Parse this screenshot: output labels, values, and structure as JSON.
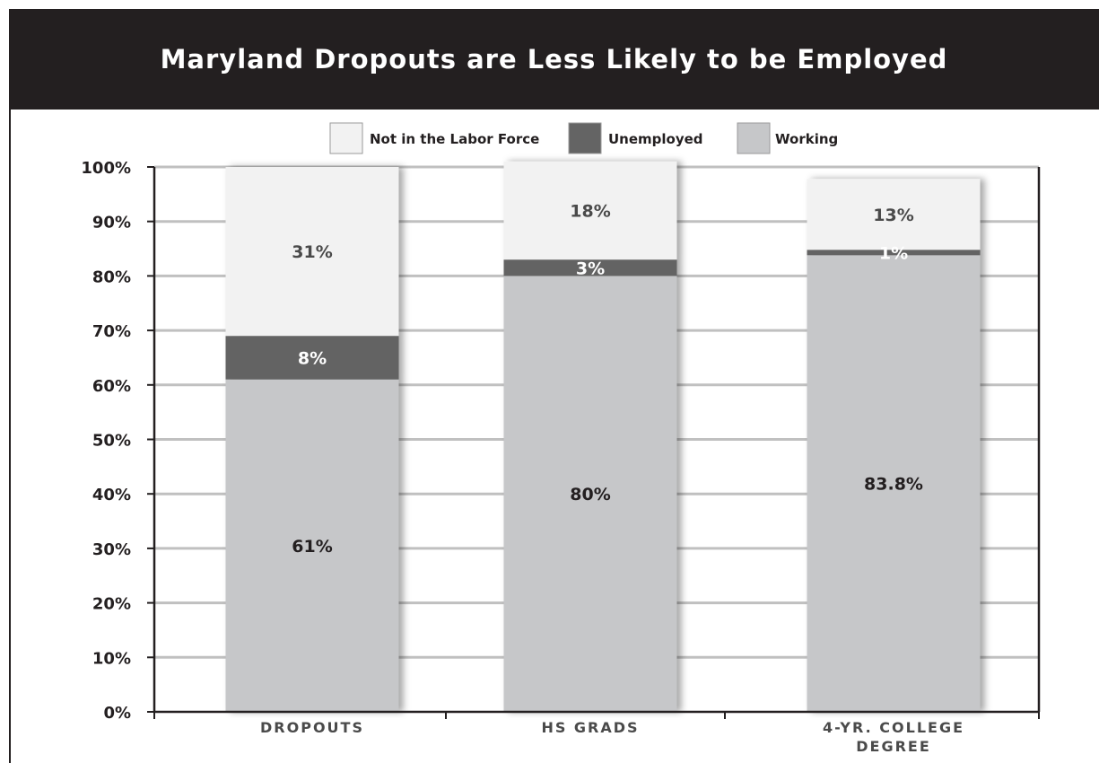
{
  "figure": {
    "title": "Maryland Dropouts are Less Likely to be Employed"
  },
  "colors": {
    "title_bg": "#231f20",
    "not_in_labor_force": "#f2f2f2",
    "unemployed": "#646464",
    "working": "#c6c7c9",
    "axis": "#231f20",
    "grid": "#c0c0c0"
  },
  "chart_data": {
    "type": "bar",
    "stacked": true,
    "categories": [
      "DROPOUTS",
      "HS GRADS",
      "4-YR. COLLEGE DEGREE"
    ],
    "series": [
      {
        "name": "Working",
        "values": [
          61,
          80,
          83.8
        ],
        "labels": [
          "61%",
          "80%",
          "83.8%"
        ]
      },
      {
        "name": "Unemployed",
        "values": [
          8,
          3,
          1
        ],
        "labels": [
          "8%",
          "3%",
          "1%"
        ]
      },
      {
        "name": "Not in the Labor Force",
        "values": [
          31,
          18,
          13
        ],
        "labels": [
          "31%",
          "18%",
          "13%"
        ]
      }
    ],
    "legend_order": [
      "Not in the Labor Force",
      "Unemployed",
      "Working"
    ],
    "y_ticks": [
      "0%",
      "10%",
      "20%",
      "30%",
      "40%",
      "50%",
      "60%",
      "70%",
      "80%",
      "90%",
      "100%"
    ],
    "ylim": [
      0,
      100
    ],
    "grid": true,
    "legend_position": "top"
  }
}
